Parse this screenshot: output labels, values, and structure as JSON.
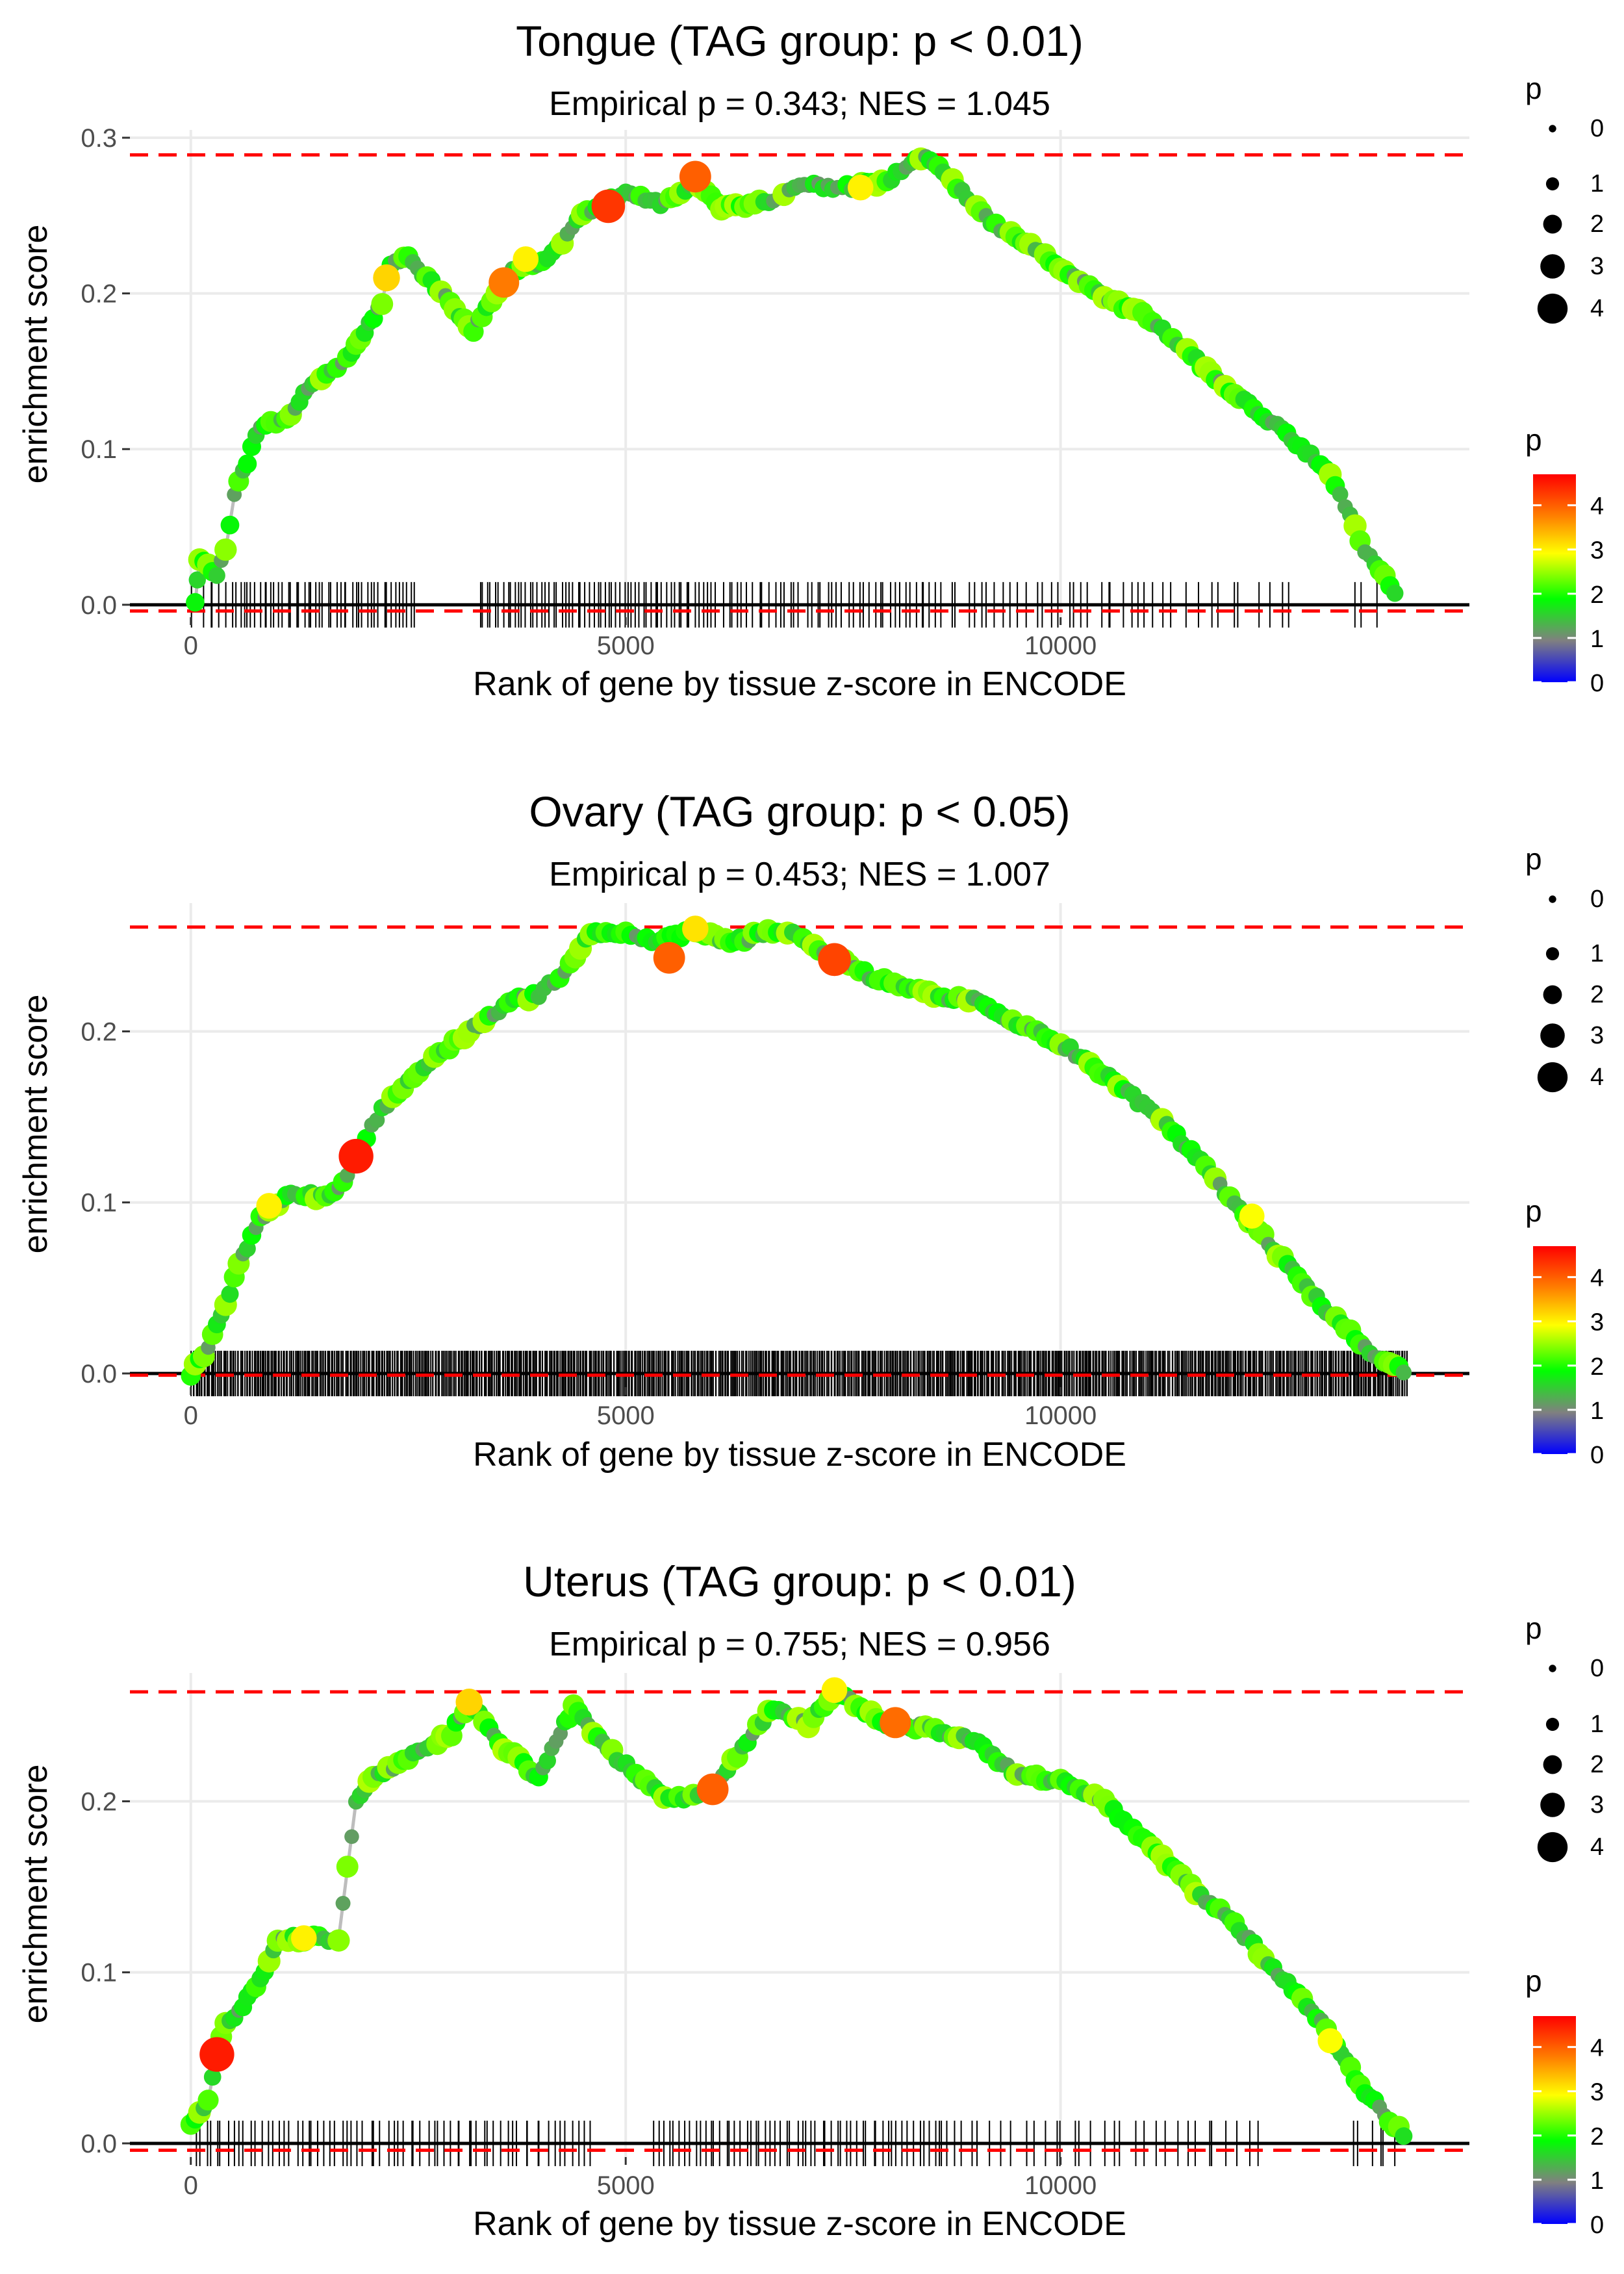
{
  "chart_data": [
    {
      "type": "scatter",
      "title": "Tongue (TAG group: p < 0.01)",
      "subtitle": "Empirical p = 0.343; NES = 1.045",
      "xlabel": "Rank of gene by tissue z-score in ENCODE",
      "ylabel": "enrichment score",
      "xlim": [
        -700,
        14700
      ],
      "ylim": [
        -0.008,
        0.305
      ],
      "x_ticks": [
        0,
        5000,
        10000
      ],
      "x_tick_labels": [
        "0",
        "5000",
        "10000"
      ],
      "y_ticks": [
        0.0,
        0.1,
        0.2,
        0.3
      ],
      "y_tick_labels": [
        "0.0",
        "0.1",
        "0.2",
        "0.3"
      ],
      "max_es": 0.289,
      "min_es": -0.004,
      "path": [
        [
          50,
          0.0
        ],
        [
          100,
          0.03
        ],
        [
          300,
          0.02
        ],
        [
          400,
          0.035
        ],
        [
          500,
          0.07
        ],
        [
          700,
          0.1
        ],
        [
          800,
          0.115
        ],
        [
          1100,
          0.12
        ],
        [
          1300,
          0.135
        ],
        [
          1500,
          0.145
        ],
        [
          1800,
          0.16
        ],
        [
          2000,
          0.175
        ],
        [
          2200,
          0.195
        ],
        [
          2300,
          0.22
        ],
        [
          2500,
          0.223
        ],
        [
          3250,
          0.177
        ],
        [
          3400,
          0.19
        ],
        [
          3700,
          0.215
        ],
        [
          4100,
          0.222
        ],
        [
          4500,
          0.25
        ],
        [
          5000,
          0.265
        ],
        [
          5400,
          0.257
        ],
        [
          5800,
          0.272
        ],
        [
          6100,
          0.255
        ],
        [
          6700,
          0.26
        ],
        [
          7000,
          0.27
        ],
        [
          7600,
          0.268
        ],
        [
          8000,
          0.272
        ],
        [
          8450,
          0.289
        ],
        [
          8700,
          0.275
        ],
        [
          9200,
          0.245
        ],
        [
          9600,
          0.232
        ],
        [
          10100,
          0.213
        ],
        [
          10500,
          0.197
        ],
        [
          11000,
          0.185
        ],
        [
          11400,
          0.165
        ],
        [
          12000,
          0.135
        ],
        [
          12600,
          0.11
        ],
        [
          13100,
          0.085
        ],
        [
          13500,
          0.035
        ],
        [
          13900,
          0.005
        ]
      ],
      "highlights": [
        [
          4800,
          0.256,
          4.3
        ],
        [
          5800,
          0.275,
          4.0
        ],
        [
          3600,
          0.207,
          3.8
        ],
        [
          2250,
          0.21,
          3.2
        ],
        [
          3850,
          0.222,
          3.0
        ],
        [
          7700,
          0.268,
          3.0
        ]
      ],
      "hit_density": [
        [
          0,
          400,
          5
        ],
        [
          400,
          2600,
          48
        ],
        [
          3300,
          5900,
          58
        ],
        [
          5900,
          8600,
          45
        ],
        [
          8600,
          11100,
          28
        ],
        [
          11100,
          12700,
          12
        ],
        [
          13300,
          13700,
          3
        ]
      ],
      "legend_size": {
        "title": "p",
        "labels": [
          "0",
          "1",
          "2",
          "3",
          "4"
        ]
      },
      "legend_color": {
        "title": "p",
        "labels": [
          "0",
          "1",
          "2",
          "3",
          "4"
        ],
        "stops": [
          "#0000ff",
          "#808080",
          "#00ff00",
          "#ffff00",
          "#ff7f00",
          "#ff0000"
        ]
      }
    },
    {
      "type": "scatter",
      "title": "Ovary (TAG group: p < 0.05)",
      "subtitle": "Empirical p = 0.453; NES = 1.007",
      "xlabel": "Rank of gene by tissue z-score in ENCODE",
      "ylabel": "enrichment score",
      "xlim": [
        -700,
        14700
      ],
      "ylim": [
        -0.008,
        0.275
      ],
      "x_ticks": [
        0,
        5000,
        10000
      ],
      "x_tick_labels": [
        "0",
        "5000",
        "10000"
      ],
      "y_ticks": [
        0.0,
        0.1,
        0.2
      ],
      "y_tick_labels": [
        "0.0",
        "0.1",
        "0.2"
      ],
      "max_es": 0.261,
      "min_es": -0.001,
      "path": [
        [
          0,
          0.0
        ],
        [
          200,
          0.015
        ],
        [
          400,
          0.04
        ],
        [
          600,
          0.07
        ],
        [
          800,
          0.09
        ],
        [
          1000,
          0.1
        ],
        [
          1200,
          0.105
        ],
        [
          1500,
          0.103
        ],
        [
          1700,
          0.107
        ],
        [
          1900,
          0.127
        ],
        [
          2200,
          0.155
        ],
        [
          2500,
          0.17
        ],
        [
          2800,
          0.185
        ],
        [
          3200,
          0.2
        ],
        [
          3600,
          0.215
        ],
        [
          4000,
          0.222
        ],
        [
          4300,
          0.235
        ],
        [
          4600,
          0.258
        ],
        [
          5000,
          0.258
        ],
        [
          5300,
          0.252
        ],
        [
          5800,
          0.259
        ],
        [
          6200,
          0.252
        ],
        [
          6800,
          0.26
        ],
        [
          7100,
          0.252
        ],
        [
          7400,
          0.243
        ],
        [
          7800,
          0.232
        ],
        [
          8200,
          0.225
        ],
        [
          8600,
          0.22
        ],
        [
          9000,
          0.218
        ],
        [
          9500,
          0.205
        ],
        [
          10000,
          0.193
        ],
        [
          10500,
          0.175
        ],
        [
          11000,
          0.155
        ],
        [
          11500,
          0.13
        ],
        [
          12000,
          0.1
        ],
        [
          12500,
          0.07
        ],
        [
          13000,
          0.04
        ],
        [
          13500,
          0.015
        ],
        [
          14000,
          0.0
        ]
      ],
      "highlights": [
        [
          1900,
          0.127,
          4.5
        ],
        [
          5500,
          0.243,
          4.0
        ],
        [
          7400,
          0.242,
          4.2
        ],
        [
          5800,
          0.26,
          3.1
        ],
        [
          900,
          0.098,
          3.0
        ],
        [
          12200,
          0.092,
          2.9
        ]
      ],
      "hit_density": [
        [
          0,
          14000,
          800
        ]
      ],
      "legend_size": {
        "title": "p",
        "labels": [
          "0",
          "1",
          "2",
          "3",
          "4"
        ]
      },
      "legend_color": {
        "title": "p",
        "labels": [
          "0",
          "1",
          "2",
          "3",
          "4"
        ],
        "stops": [
          "#0000ff",
          "#808080",
          "#00ff00",
          "#ffff00",
          "#ff7f00",
          "#ff0000"
        ]
      }
    },
    {
      "type": "scatter",
      "title": "Uterus (TAG group: p < 0.01)",
      "subtitle": "Empirical p = 0.755; NES = 0.956",
      "xlabel": "Rank of gene by tissue z-score in ENCODE",
      "ylabel": "enrichment score",
      "xlim": [
        -700,
        14700
      ],
      "ylim": [
        -0.008,
        0.275
      ],
      "x_ticks": [
        0,
        5000,
        10000
      ],
      "x_tick_labels": [
        "0",
        "5000",
        "10000"
      ],
      "y_ticks": [
        0.0,
        0.1,
        0.2
      ],
      "y_tick_labels": [
        "0.0",
        "0.1",
        "0.2"
      ],
      "max_es": 0.264,
      "min_es": -0.004,
      "path": [
        [
          0,
          0.01
        ],
        [
          200,
          0.025
        ],
        [
          300,
          0.052
        ],
        [
          400,
          0.07
        ],
        [
          600,
          0.08
        ],
        [
          800,
          0.095
        ],
        [
          1000,
          0.12
        ],
        [
          1300,
          0.12
        ],
        [
          1700,
          0.12
        ],
        [
          1800,
          0.16
        ],
        [
          1900,
          0.2
        ],
        [
          2100,
          0.215
        ],
        [
          2500,
          0.225
        ],
        [
          3000,
          0.24
        ],
        [
          3200,
          0.258
        ],
        [
          3600,
          0.232
        ],
        [
          4000,
          0.213
        ],
        [
          4200,
          0.235
        ],
        [
          4400,
          0.255
        ],
        [
          4900,
          0.225
        ],
        [
          5500,
          0.2
        ],
        [
          6000,
          0.207
        ],
        [
          6400,
          0.235
        ],
        [
          6700,
          0.255
        ],
        [
          7100,
          0.245
        ],
        [
          7400,
          0.264
        ],
        [
          7700,
          0.255
        ],
        [
          8000,
          0.245
        ],
        [
          8500,
          0.243
        ],
        [
          9000,
          0.235
        ],
        [
          9500,
          0.215
        ],
        [
          10000,
          0.213
        ],
        [
          10500,
          0.2
        ],
        [
          11000,
          0.175
        ],
        [
          11500,
          0.15
        ],
        [
          12000,
          0.128
        ],
        [
          12500,
          0.1
        ],
        [
          13000,
          0.07
        ],
        [
          13500,
          0.03
        ],
        [
          14000,
          0.002
        ]
      ],
      "highlights": [
        [
          300,
          0.052,
          4.5
        ],
        [
          6000,
          0.207,
          4.0
        ],
        [
          8100,
          0.246,
          3.9
        ],
        [
          3200,
          0.258,
          3.2
        ],
        [
          1300,
          0.12,
          3.0
        ],
        [
          7400,
          0.265,
          3.0
        ],
        [
          13100,
          0.06,
          2.9
        ]
      ],
      "hit_density": [
        [
          0,
          3600,
          55
        ],
        [
          3600,
          4600,
          15
        ],
        [
          5300,
          8800,
          60
        ],
        [
          8800,
          12300,
          30
        ],
        [
          13300,
          13900,
          6
        ]
      ],
      "legend_size": {
        "title": "p",
        "labels": [
          "0",
          "1",
          "2",
          "3",
          "4"
        ]
      },
      "legend_color": {
        "title": "p",
        "labels": [
          "0",
          "1",
          "2",
          "3",
          "4"
        ],
        "stops": [
          "#0000ff",
          "#808080",
          "#00ff00",
          "#ffff00",
          "#ff7f00",
          "#ff0000"
        ]
      }
    }
  ]
}
